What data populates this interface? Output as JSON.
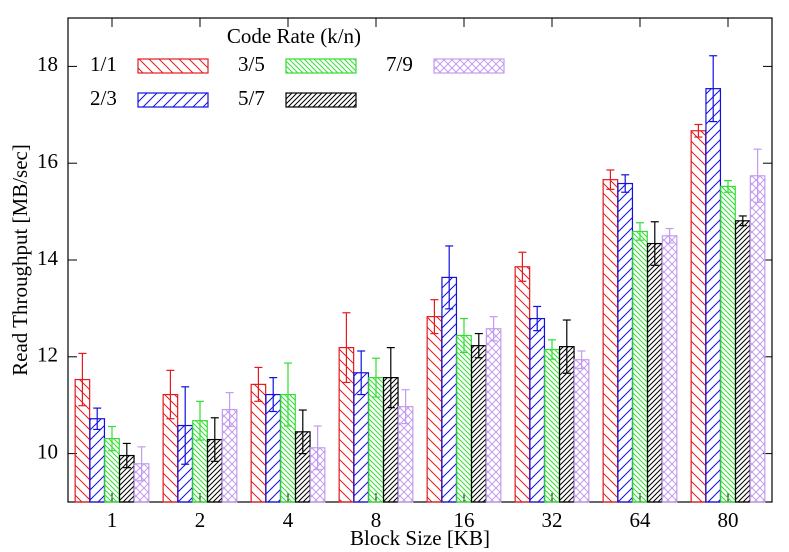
{
  "chart_data": {
    "type": "bar",
    "x_label": "Block Size [KB]",
    "y_label": "Read Throughput [MB/sec]",
    "legend_title": "Code Rate (k/n)",
    "categories": [
      "1",
      "2",
      "4",
      "8",
      "16",
      "32",
      "64",
      "80"
    ],
    "ylim": [
      9,
      19
    ],
    "yticks": [
      10,
      12,
      14,
      16,
      18
    ],
    "series": [
      {
        "name": "1/1",
        "color": "#e41a1c",
        "values": [
          11.53,
          11.22,
          11.43,
          12.19,
          12.83,
          13.86,
          15.66,
          16.67
        ],
        "errors": [
          0.54,
          0.5,
          0.35,
          0.72,
          0.35,
          0.3,
          0.2,
          0.13
        ]
      },
      {
        "name": "2/3",
        "color": "#1010e0",
        "values": [
          10.72,
          10.58,
          11.22,
          11.67,
          13.64,
          12.79,
          15.58,
          17.54
        ],
        "errors": [
          0.22,
          0.8,
          0.35,
          0.45,
          0.65,
          0.25,
          0.18,
          0.68
        ]
      },
      {
        "name": "3/5",
        "color": "#33dd33",
        "values": [
          10.31,
          10.68,
          11.22,
          11.57,
          12.44,
          12.15,
          14.59,
          15.52
        ],
        "errors": [
          0.25,
          0.4,
          0.65,
          0.4,
          0.35,
          0.2,
          0.18,
          0.12
        ]
      },
      {
        "name": "5/7",
        "color": "#000000",
        "values": [
          9.96,
          10.29,
          10.45,
          11.57,
          12.23,
          12.21,
          14.34,
          14.81
        ],
        "errors": [
          0.25,
          0.45,
          0.45,
          0.62,
          0.25,
          0.55,
          0.45,
          0.1
        ]
      },
      {
        "name": "7/9",
        "color": "#c39bf0",
        "values": [
          9.79,
          10.91,
          10.12,
          10.97,
          12.58,
          11.94,
          14.5,
          15.74
        ],
        "errors": [
          0.35,
          0.35,
          0.45,
          0.35,
          0.25,
          0.18,
          0.15,
          0.55
        ]
      }
    ]
  }
}
